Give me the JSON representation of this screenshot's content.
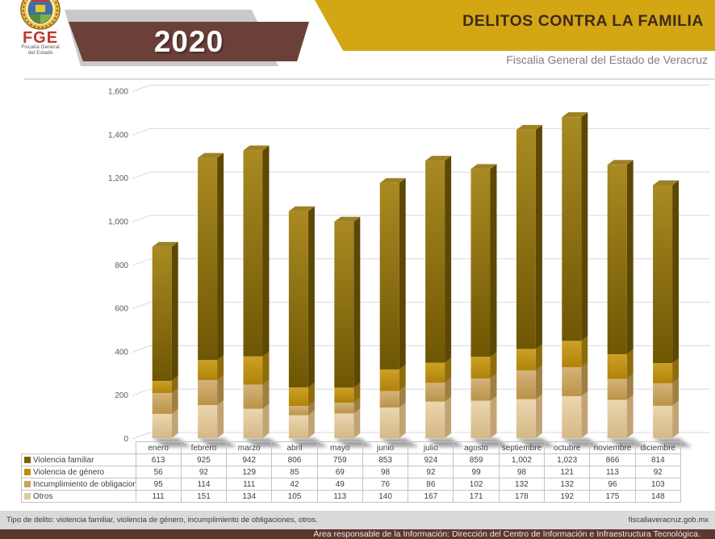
{
  "header": {
    "year": "2020",
    "title": "DELITOS CONTRA LA FAMILIA",
    "subtitle": "Fiscalia General del Estado de Veracruz",
    "logo": {
      "acronym": "FGE",
      "line1": "Fiscalía General",
      "line2": "del Estado"
    }
  },
  "colors": {
    "accent_gold": "#D2A713",
    "banner_brown": "#6B4038",
    "footer_brown": "#5C382E",
    "footer_gray": "#DADADA",
    "gridline": "#D9D9D9",
    "axis_label": "#595959"
  },
  "chart_data": {
    "type": "bar",
    "stacked": true,
    "grid": true,
    "title": "",
    "xlabel": "",
    "ylabel": "",
    "ylim": [
      0,
      1600
    ],
    "ytick_step": 200,
    "legend_position": "table-left",
    "stack_order_bottom_to_top": [
      "Otros",
      "Incumplimiento de obligaciones",
      "Violencia de género",
      "Violencia familiar"
    ],
    "categories": [
      "enero",
      "febrero",
      "marzo",
      "abril",
      "mayo",
      "junio",
      "julio",
      "agosto",
      "septiembre",
      "octubre",
      "noviembre",
      "diciembre"
    ],
    "series": [
      {
        "name": "Violencia familiar",
        "legend_color": "#7F6000",
        "front_gradient": [
          "#A98A22",
          "#6F5603"
        ],
        "side_color": "#5C4703",
        "top_color": "#9E8025",
        "values": [
          613,
          925,
          942,
          806,
          759,
          853,
          924,
          859,
          1002,
          1023,
          866,
          814
        ]
      },
      {
        "name": "Violencia de género",
        "legend_color": "#BF8F00",
        "front_gradient": [
          "#CDA125",
          "#B0820A"
        ],
        "side_color": "#8F6C0B",
        "top_color": "#C79B1E",
        "values": [
          56,
          92,
          129,
          85,
          69,
          98,
          92,
          99,
          98,
          121,
          113,
          92
        ]
      },
      {
        "name": "Incumplimiento de obligaciones",
        "legend_color": "#C9A35E",
        "front_gradient": [
          "#D4B37A",
          "#BB9348"
        ],
        "side_color": "#A07F42",
        "top_color": "#CBA96C",
        "values": [
          95,
          114,
          111,
          42,
          49,
          76,
          86,
          102,
          132,
          132,
          96,
          103
        ]
      },
      {
        "name": "Otros",
        "legend_color": "#DFC99F",
        "front_gradient": [
          "#EAD6B0",
          "#D5B886"
        ],
        "side_color": "#C2A373",
        "top_color": "#E2CBA0",
        "values": [
          111,
          151,
          134,
          105,
          113,
          140,
          167,
          171,
          178,
          192,
          175,
          148
        ]
      }
    ]
  },
  "footer": {
    "note": "Tipo de delito: violencia familiar, violencia de género, incumplimiento de obligaciones, otros.",
    "site": "fiscaliaveracruz.gob.mx",
    "responsible": "Área responsable de la Información: Dirección del Centro de Información e Infraestructura Tecnológica."
  }
}
